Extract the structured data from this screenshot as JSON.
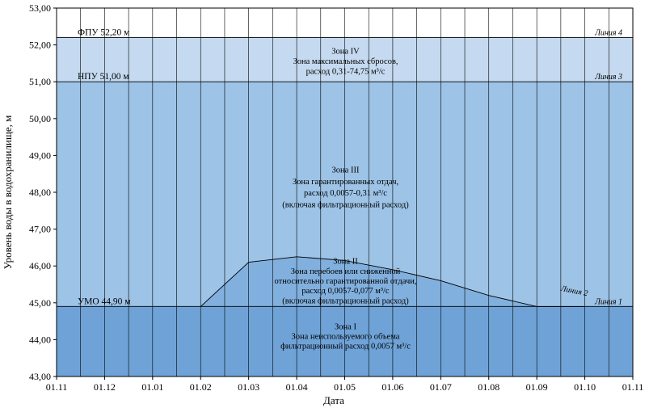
{
  "chart_data": {
    "type": "area",
    "ylabel": "Уровень воды в водохранилище, м",
    "xlabel": "Дата",
    "ylim": [
      43.0,
      53.0
    ],
    "y_ticks": [
      "43,00",
      "44,00",
      "45,00",
      "46,00",
      "47,00",
      "48,00",
      "49,00",
      "50,00",
      "51,00",
      "52,00",
      "53,00"
    ],
    "x_ticks": [
      "01.11",
      "01.12",
      "01.01",
      "01.02",
      "01.03",
      "01.04",
      "01.05",
      "01.06",
      "01.07",
      "01.08",
      "01.09",
      "01.10",
      "01.11"
    ],
    "grid": "vertical",
    "levels": [
      {
        "key": "fpu",
        "label": "ФПУ 52,20 м",
        "value": 52.2,
        "line_label": "Линия 4"
      },
      {
        "key": "npu",
        "label": "НПУ 51,00 м",
        "value": 51.0,
        "line_label": "Линия 3"
      },
      {
        "key": "umo",
        "label": "УМО 44,90 м",
        "value": 44.9,
        "line_label": "Линия 1"
      }
    ],
    "line2": {
      "label": "Линия 2",
      "x": [
        3.0,
        4.0,
        5.0,
        6.0,
        7.0,
        8.0,
        9.0,
        10.0,
        11.0
      ],
      "y": [
        44.9,
        46.1,
        46.25,
        46.15,
        45.9,
        45.6,
        45.2,
        44.9,
        44.9
      ]
    },
    "zones": [
      {
        "key": "zone4",
        "lines": [
          "Зона IV",
          "Зона максимальных сбросов,",
          "расход 0,31-74,75 м³/с"
        ]
      },
      {
        "key": "zone3",
        "lines": [
          "Зона III",
          "Зона гарантированных отдач,",
          "расход 0,0057-0,31 м³/с",
          "(включая фильтрационный расход)"
        ]
      },
      {
        "key": "zone2",
        "lines": [
          "Зона II",
          "Зона перебоев или сниженной",
          "относительно гарантированной отдачи,",
          "расход 0,0057-0,077 м³/с",
          "(включая фильтрационный расход)"
        ]
      },
      {
        "key": "zone1",
        "lines": [
          "Зона I",
          "Зона  неиспользуемого объема",
          "фильтрационный расход 0,0057 м³/с"
        ]
      }
    ],
    "colors": {
      "zone4": "#c5daf0",
      "zone3": "#9dc3e6",
      "zone2": "#81b0de",
      "zone1": "#6fa3d7",
      "grid": "#000000"
    }
  }
}
